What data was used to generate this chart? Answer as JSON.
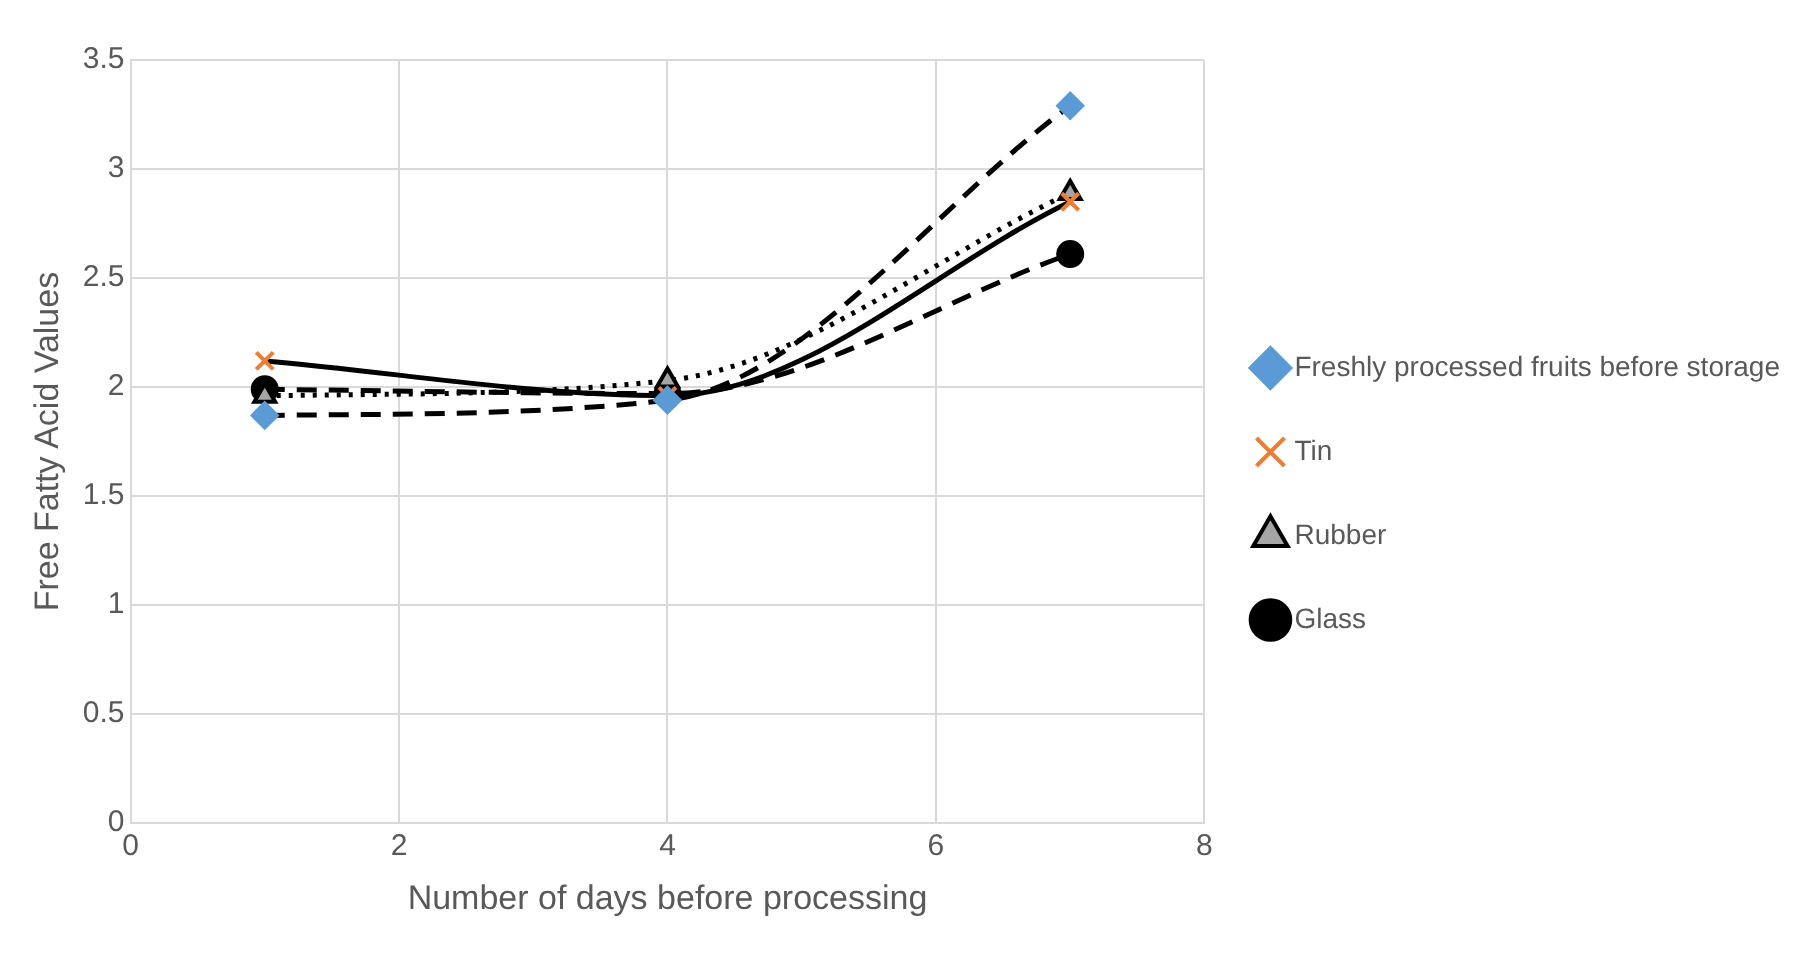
{
  "chart_data": {
    "type": "line",
    "xlabel": "Number of days before processing",
    "ylabel": "Free Fatty Acid Values",
    "x": [
      1,
      4,
      7
    ],
    "series": [
      {
        "name": "Freshly processed fruits before storage",
        "color": "#000000",
        "values": [
          1.87,
          1.94,
          3.29
        ],
        "marker": "diamond",
        "line_style": "dashed"
      },
      {
        "name": "Tin",
        "color": "#000000",
        "values": [
          2.12,
          1.96,
          2.85
        ],
        "marker": "cross",
        "line_style": "solid"
      },
      {
        "name": "Rubber",
        "color": "#000000",
        "values": [
          1.96,
          2.03,
          2.89
        ],
        "marker": "triangle",
        "line_style": "dotted"
      },
      {
        "name": "Glass",
        "color": "#000000",
        "values": [
          1.99,
          1.97,
          2.61
        ],
        "marker": "circle",
        "line_style": "dashed"
      }
    ],
    "xlim": [
      0,
      8
    ],
    "xticks": [
      0,
      2,
      4,
      6,
      8
    ],
    "ylim": [
      0,
      3.5
    ],
    "yticks": [
      0,
      0.5,
      1,
      1.5,
      2,
      2.5,
      3,
      3.5
    ],
    "grid": true,
    "legend": "right"
  }
}
